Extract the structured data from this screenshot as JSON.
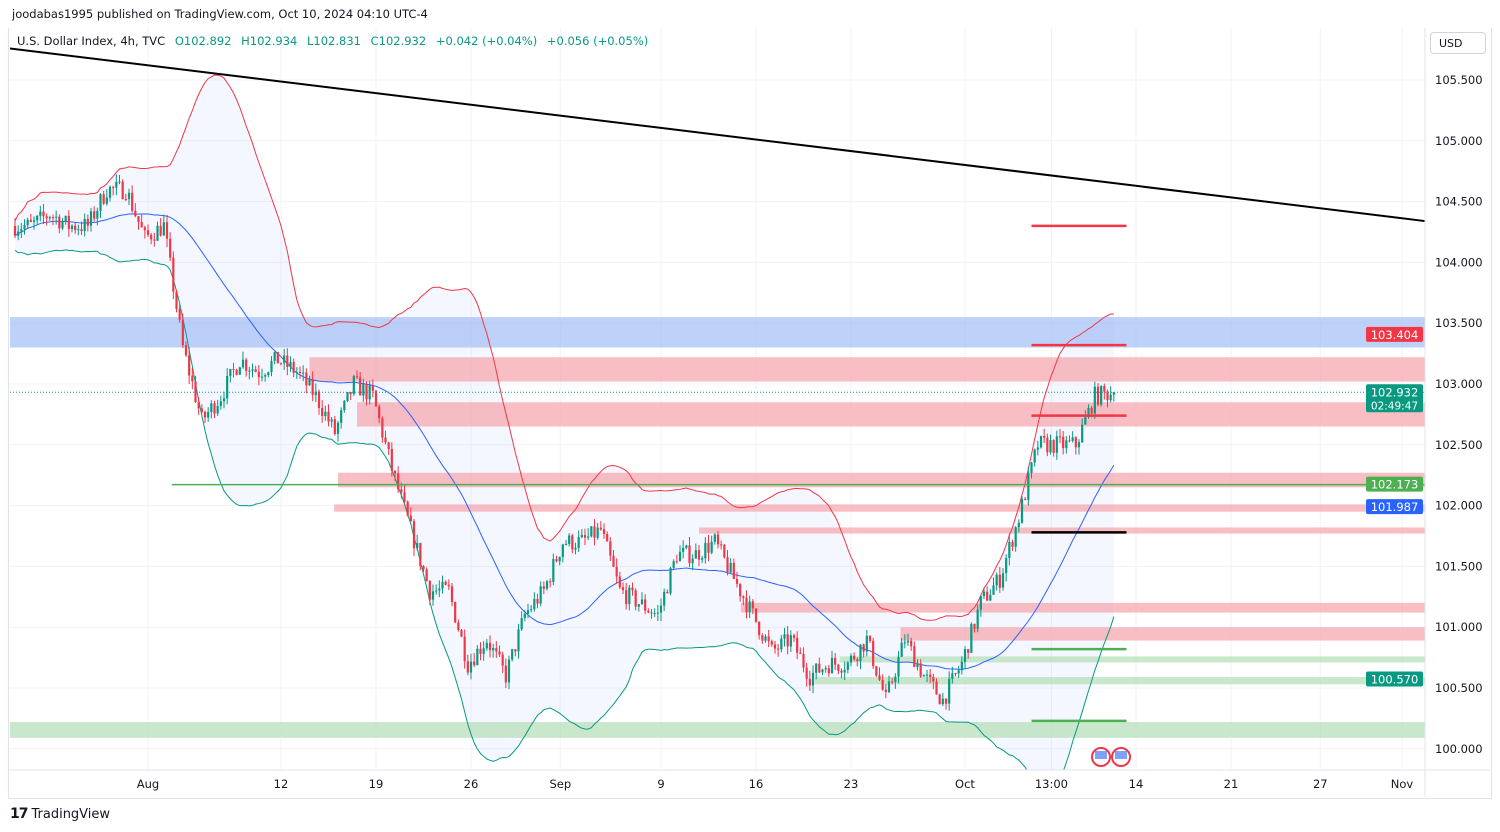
{
  "header": {
    "published": "joodabas1995 published on TradingView.com, Oct 10, 2024 04:10 UTC-4",
    "symbol": "U.S. Dollar Index, 4h, TVC",
    "open": "O102.892",
    "high": "H102.934",
    "low": "L102.831",
    "close": "C102.932",
    "change": "+0.042 (+0.04%)",
    "change2": "+0.056 (+0.05%)",
    "currency": "USD"
  },
  "footer": {
    "brand": "TradingView"
  },
  "colors": {
    "up": "#089981",
    "down": "#f23645",
    "mid": "#2962ff",
    "upper": "#f23645",
    "lower": "#089981",
    "zone_red": "#f7a8b0",
    "zone_blue": "#9bb8f5",
    "zone_green": "#b7dfb9"
  },
  "chart_data": {
    "type": "candlestick",
    "title": "U.S. Dollar Index, 4h, TVC",
    "ylim": [
      99.65,
      105.9
    ],
    "y_ticks": [
      "105.500",
      "105.000",
      "104.500",
      "104.000",
      "103.500",
      "103.000",
      "102.500",
      "102.000",
      "101.500",
      "101.000",
      "100.500",
      "100.000"
    ],
    "x_ticks": [
      {
        "label": "Aug",
        "day": 0
      },
      {
        "label": "12",
        "day": 7
      },
      {
        "label": "19",
        "day": 12
      },
      {
        "label": "26",
        "day": 17
      },
      {
        "label": "Sep",
        "day": 21.7
      },
      {
        "label": "9",
        "day": 27
      },
      {
        "label": "16",
        "day": 32
      },
      {
        "label": "23",
        "day": 37
      },
      {
        "label": "Oct",
        "day": 43
      },
      {
        "label": "13:00",
        "day": 47.55
      },
      {
        "label": "14",
        "day": 52
      },
      {
        "label": "21",
        "day": 57
      },
      {
        "label": "27",
        "day": 61.7
      },
      {
        "label": "Nov",
        "day": 66
      }
    ],
    "first_day_index": -7,
    "daily_closes": [
      104.3,
      104.4,
      104.3,
      104.3,
      104.6,
      104.6,
      104.2,
      104.3,
      103.3,
      102.7,
      102.9,
      103.2,
      103.1,
      103.2,
      103.1,
      102.9,
      102.6,
      103.0,
      102.9,
      102.3,
      101.8,
      101.3,
      101.3,
      100.7,
      100.9,
      100.6,
      101.1,
      101.3,
      101.7,
      101.7,
      101.8,
      101.3,
      101.2,
      101.1,
      101.6,
      101.6,
      101.7,
      101.4,
      101.1,
      100.8,
      100.9,
      100.6,
      100.7,
      100.7,
      100.9,
      100.4,
      100.9,
      100.6,
      100.4,
      100.7,
      101.2,
      101.4,
      101.9,
      102.5,
      102.5,
      102.5,
      102.9,
      102.932
    ],
    "zones": [
      {
        "color": "blue",
        "from_day": -7.5,
        "low": 103.3,
        "high": 103.55
      },
      {
        "color": "red",
        "from_day": 8.5,
        "low": 103.02,
        "high": 103.22
      },
      {
        "color": "red",
        "from_day": 11,
        "low": 102.65,
        "high": 102.85
      },
      {
        "color": "red",
        "from_day": 10,
        "low": 102.15,
        "high": 102.27
      },
      {
        "color": "red",
        "from_day": 9.8,
        "low": 101.95,
        "high": 102.01
      },
      {
        "color": "red",
        "from_day": 29,
        "low": 101.77,
        "high": 101.82
      },
      {
        "color": "red",
        "from_day": 31.2,
        "low": 101.12,
        "high": 101.2
      },
      {
        "color": "red",
        "from_day": 39.6,
        "low": 100.89,
        "high": 101.0
      },
      {
        "color": "green",
        "from_day": 36.4,
        "low": 100.71,
        "high": 100.76
      },
      {
        "color": "green",
        "from_day": 35.1,
        "low": 100.53,
        "high": 100.59
      },
      {
        "color": "green",
        "from_day": -7.5,
        "low": 100.09,
        "high": 100.22
      }
    ],
    "support_line": {
      "price": 102.173,
      "from_day": 1.25
    },
    "trend_line": {
      "from_day": -7.3,
      "from_price": 105.76,
      "to_day": 67.2,
      "to_price": 104.34
    },
    "target_lines": [
      {
        "price": 104.3,
        "color": "red"
      },
      {
        "price": 103.32,
        "color": "red"
      },
      {
        "price": 102.74,
        "color": "red"
      },
      {
        "price": 101.78,
        "color": "black"
      },
      {
        "price": 100.82,
        "color": "green"
      },
      {
        "price": 100.23,
        "color": "green"
      }
    ],
    "target_from_day": 46.5,
    "target_to_day": 51.5,
    "price_labels": [
      {
        "value": "103.404",
        "color": "#f23645",
        "price": 103.404
      },
      {
        "value": "102.932",
        "sub": "02:49:47",
        "color": "#089981",
        "price": 102.932
      },
      {
        "value": "102.173",
        "color": "#4caf50",
        "price": 102.173
      },
      {
        "value": "101.987",
        "color": "#2962ff",
        "price": 101.987
      },
      {
        "value": "100.570",
        "color": "#089981",
        "price": 100.57
      }
    ]
  }
}
